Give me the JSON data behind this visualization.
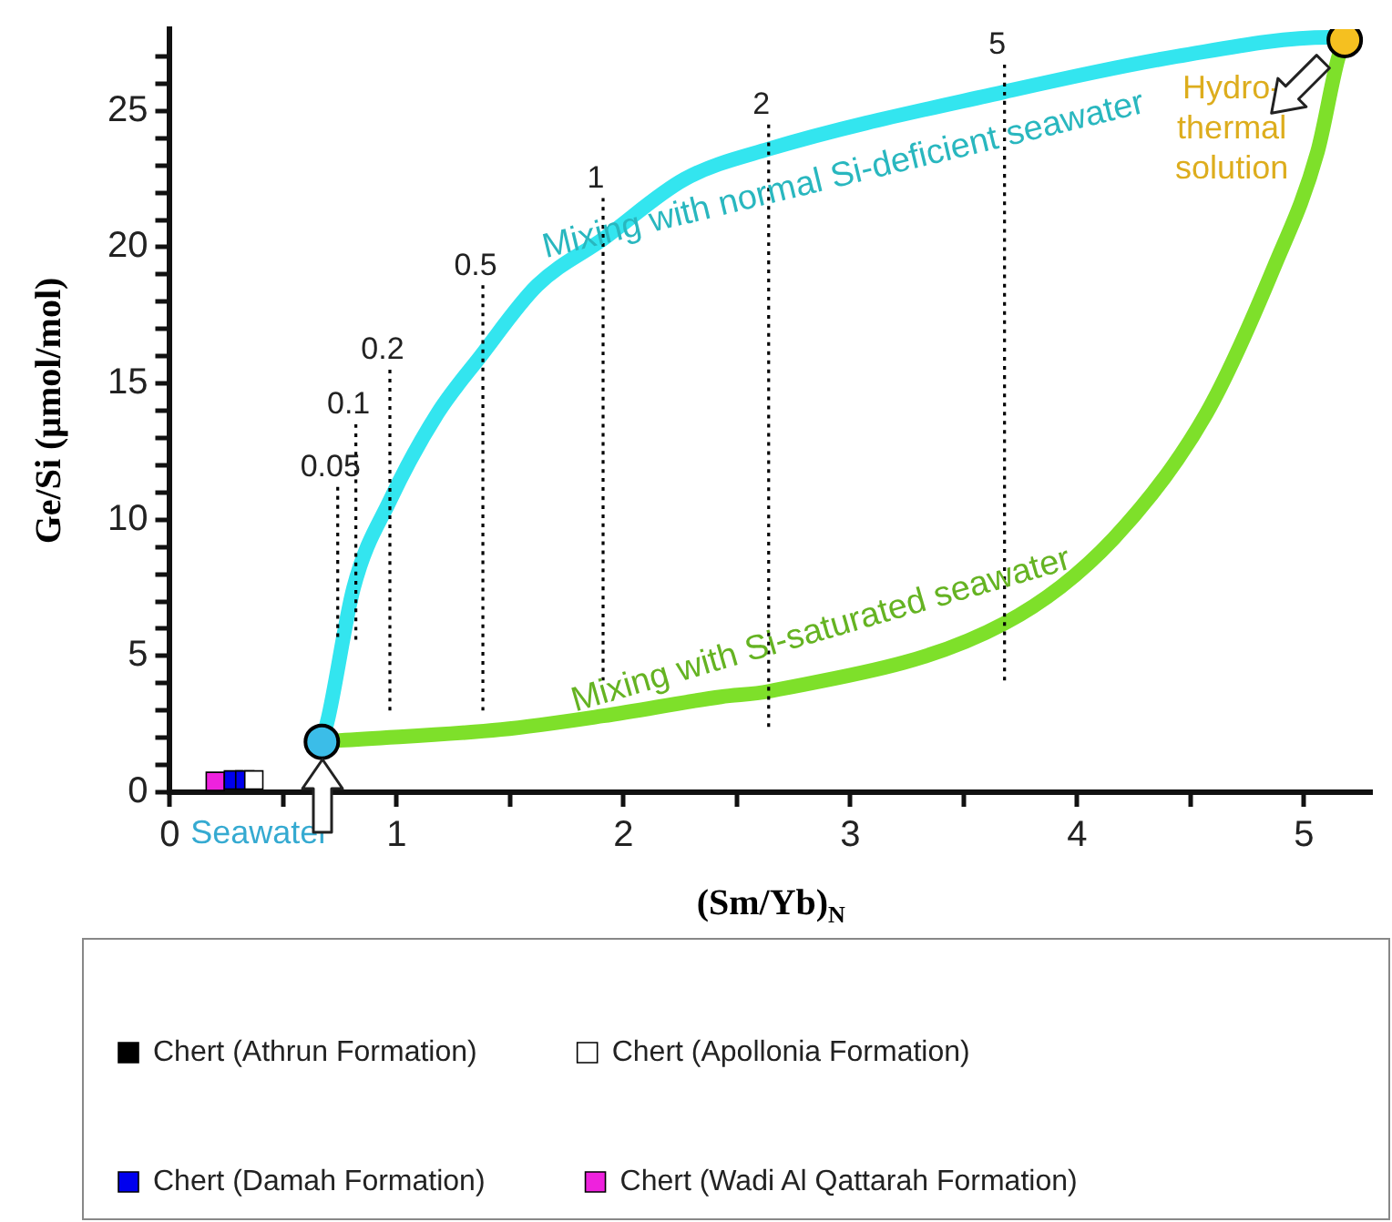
{
  "chart_data": {
    "type": "scatter",
    "xlabel": "(Sm/Yb)$_{N}$",
    "ylabel": "Ge/Si (μmol/mol)",
    "xlim": [
      0,
      5.3
    ],
    "xticks": [
      0,
      {
        "value": 0.5,
        "label": null
      },
      1,
      {
        "value": 1.5,
        "label": null
      },
      2,
      {
        "value": 2.5,
        "label": null
      },
      3,
      {
        "value": 3.5,
        "label": null
      },
      4,
      {
        "value": 4.5,
        "label": null
      },
      5
    ],
    "ylim": [
      0,
      28
    ],
    "yticks": [
      0,
      {
        "value": 1,
        "label": null
      },
      {
        "value": 2,
        "label": null
      },
      {
        "value": 3,
        "label": null
      },
      {
        "value": 4,
        "label": null
      },
      5,
      {
        "value": 6,
        "label": null
      },
      {
        "value": 7,
        "label": null
      },
      {
        "value": 8,
        "label": null
      },
      {
        "value": 9,
        "label": null
      },
      10,
      {
        "value": 11,
        "label": null
      },
      {
        "value": 12,
        "label": null
      },
      {
        "value": 13,
        "label": null
      },
      {
        "value": 14,
        "label": null
      },
      15,
      {
        "value": 16,
        "label": null
      },
      {
        "value": 17,
        "label": null
      },
      {
        "value": 18,
        "label": null
      },
      {
        "value": 19,
        "label": null
      },
      20,
      {
        "value": 21,
        "label": null
      },
      {
        "value": 22,
        "label": null
      },
      {
        "value": 23,
        "label": null
      },
      {
        "value": 24,
        "label": null
      },
      25,
      {
        "value": 26,
        "label": null
      },
      {
        "value": 27,
        "label": null
      }
    ],
    "grid": false,
    "legend": "bottom",
    "series": [
      {
        "name": "Chert (Athrun Formation)",
        "type": "scatter",
        "marker": "square",
        "color": "#000000",
        "values": [
          null
        ]
      },
      {
        "name": "Chert (Apollonia Formation)",
        "type": "scatter",
        "marker": "square",
        "color": "#ffffff",
        "x": [
          0.37
        ],
        "values": [
          0.45
        ]
      },
      {
        "name": "Chert (Damah Formation)",
        "type": "scatter",
        "marker": "square",
        "color": "#0000ee",
        "x": [
          0.28,
          0.33
        ],
        "values": [
          0.45,
          0.45
        ]
      },
      {
        "name": "Chert (Wadi Al Qattarah Formation)",
        "type": "scatter",
        "marker": "square",
        "color": "#ee22dd",
        "x": [
          0.2
        ],
        "values": [
          0.4
        ]
      },
      {
        "name": "Seawater",
        "type": "scatter",
        "marker": "circle",
        "color": "#3bbde8",
        "x": [
          0.67
        ],
        "values": [
          1.85
        ]
      },
      {
        "name": "Hydro-\nthermal\nsolution",
        "type": "scatter",
        "marker": "circle",
        "color": "#f5c020",
        "x": [
          5.18
        ],
        "values": [
          27.6
        ]
      },
      {
        "type": "line",
        "marker": "none",
        "line_style": "dotted",
        "color": "#000000",
        "x": [
          0.74,
          0.74
        ],
        "values": [
          5.7,
          11.2
        ]
      },
      {
        "type": "line",
        "marker": "none",
        "line_style": "dotted",
        "color": "#000000",
        "x": [
          0.82,
          0.82
        ],
        "values": [
          5.6,
          13.5
        ]
      },
      {
        "type": "line",
        "marker": "none",
        "line_style": "dotted",
        "color": "#000000",
        "x": [
          0.97,
          0.97
        ],
        "values": [
          3.0,
          15.5
        ]
      },
      {
        "type": "line",
        "marker": "none",
        "line_style": "dotted",
        "color": "#000000",
        "x": [
          1.38,
          1.38
        ],
        "values": [
          3.0,
          18.6
        ]
      },
      {
        "type": "line",
        "marker": "none",
        "line_style": "dotted",
        "color": "#000000",
        "x": [
          1.91,
          1.91
        ],
        "values": [
          4.1,
          21.8
        ]
      },
      {
        "type": "line",
        "marker": "none",
        "line_style": "dotted",
        "color": "#000000",
        "x": [
          2.64,
          2.64
        ],
        "values": [
          2.4,
          24.5
        ]
      },
      {
        "type": "line",
        "marker": "none",
        "line_style": "dotted",
        "color": "#000000",
        "x": [
          3.68,
          3.68
        ],
        "values": [
          4.1,
          26.7
        ]
      },
      {
        "name": "Mixing with normal Si-deficient seawater",
        "type": "line",
        "marker": "none",
        "color": "#33e5ef",
        "x": [
          0.67,
          0.7,
          0.81,
          0.97,
          1.18,
          1.37,
          1.62,
          1.91,
          2.27,
          2.64,
          3.68,
          4.44,
          5.11,
          5.18
        ],
        "values": [
          1.85,
          2.8,
          7.5,
          10.7,
          13.9,
          16.0,
          18.6,
          20.3,
          22.5,
          23.6,
          25.7,
          27.0,
          27.7,
          27.6
        ]
      },
      {
        "name": "Mixing with Si-saturated seawater",
        "type": "line",
        "marker": "none",
        "color": "#7ee02a",
        "x": [
          0.67,
          0.75,
          1.46,
          1.91,
          2.43,
          2.64,
          3.68,
          4.16,
          4.57,
          4.87,
          5.06,
          5.15,
          5.18
        ],
        "values": [
          1.85,
          1.9,
          2.3,
          2.8,
          3.5,
          3.7,
          6.2,
          9.3,
          13.9,
          19.3,
          23.5,
          26.9,
          27.6
        ]
      }
    ],
    "annotations": [
      {
        "text": "0.05",
        "x": 0.74,
        "y": 11.2
      },
      {
        "text": "0.1",
        "x": 0.82,
        "y": 13.5
      },
      {
        "text": "0.2",
        "x": 0.97,
        "y": 15.5
      },
      {
        "text": "0.5",
        "x": 1.38,
        "y": 18.6
      },
      {
        "text": "1",
        "x": 1.91,
        "y": 21.8
      },
      {
        "text": "2",
        "x": 2.64,
        "y": 24.5
      },
      {
        "text": "5",
        "x": 3.68,
        "y": 26.7
      }
    ]
  }
}
